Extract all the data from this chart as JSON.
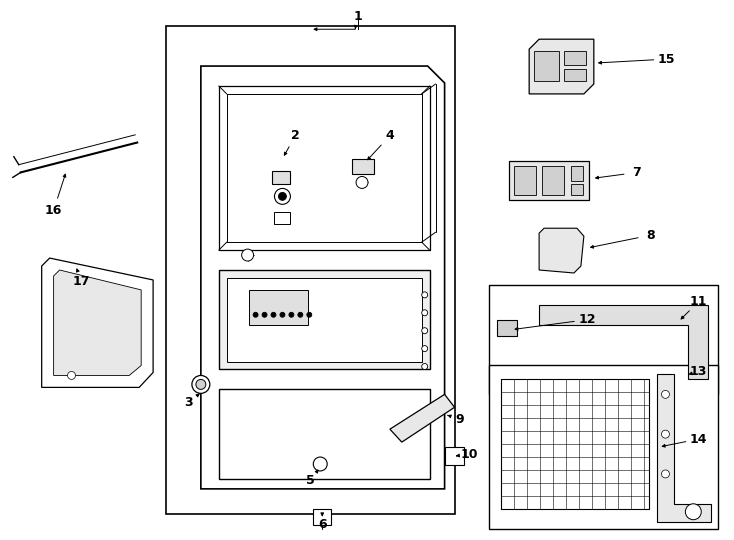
{
  "bg": "#ffffff",
  "lc": "#000000",
  "fw": 7.34,
  "fh": 5.4,
  "dpi": 100
}
